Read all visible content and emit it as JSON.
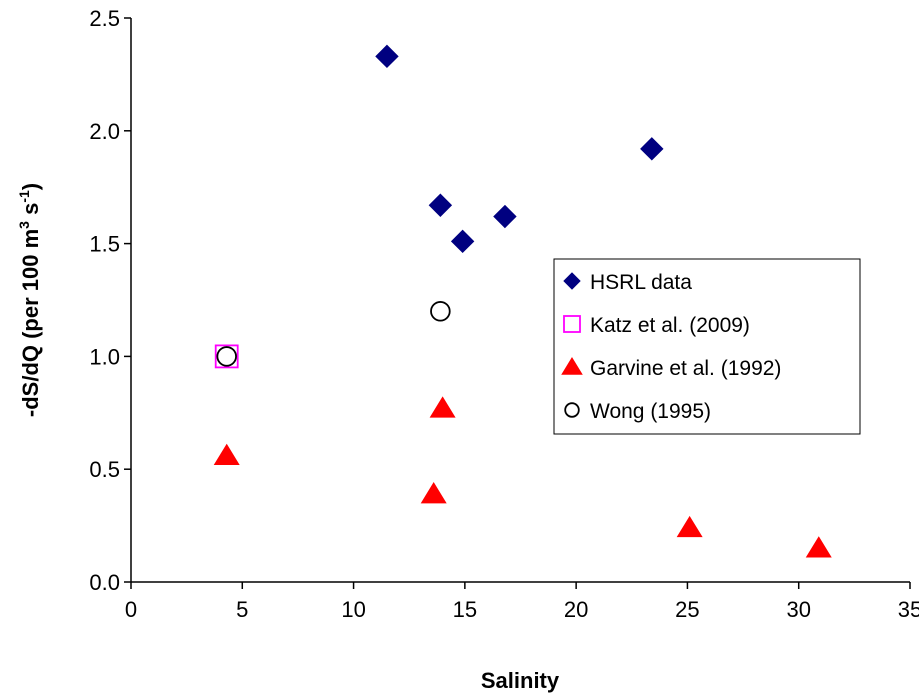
{
  "chart_data": {
    "type": "scatter",
    "xlabel": "Salinity",
    "ylabel_parts": {
      "prefix": "-dS/dQ (per 100 m",
      "exp1": "3",
      "middle": " s",
      "exp2": "-1",
      "suffix": ")"
    },
    "xlim": [
      0,
      35
    ],
    "ylim": [
      0,
      2.5
    ],
    "x_ticks": [
      "0",
      "5",
      "10",
      "15",
      "20",
      "25",
      "30",
      "35"
    ],
    "y_ticks": [
      "0.0",
      "0.5",
      "1.0",
      "1.5",
      "2.0",
      "2.5"
    ],
    "grid": false,
    "legend_position": "right",
    "series": [
      {
        "name": "HSRL data",
        "marker": "diamond",
        "color": "#000080",
        "points": [
          [
            11.5,
            2.33
          ],
          [
            13.9,
            1.67
          ],
          [
            14.9,
            1.51
          ],
          [
            16.8,
            1.62
          ],
          [
            23.4,
            1.92
          ]
        ]
      },
      {
        "name": "Katz et al. (2009)",
        "marker": "square-open",
        "color": "#FF00FF",
        "points": [
          [
            4.3,
            1.0
          ]
        ]
      },
      {
        "name": "Garvine et al. (1992)",
        "marker": "triangle",
        "color": "#FF0000",
        "points": [
          [
            4.3,
            0.56
          ],
          [
            13.6,
            0.39
          ],
          [
            14.0,
            0.77
          ],
          [
            25.1,
            0.24
          ],
          [
            30.9,
            0.15
          ]
        ]
      },
      {
        "name": "Wong (1995)",
        "marker": "circle-open",
        "color": "#000000",
        "points": [
          [
            4.3,
            1.0
          ],
          [
            13.9,
            1.2
          ]
        ]
      }
    ]
  }
}
